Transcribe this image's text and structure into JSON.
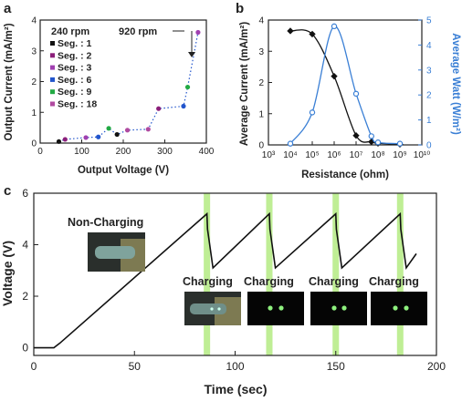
{
  "panel_labels": [
    "a",
    "b",
    "c"
  ],
  "chart_data": [
    {
      "type": "scatter",
      "panel": "a",
      "xlabel": "Output Voltage (V)",
      "ylabel": "Output Current (mA/m²)",
      "xlim": [
        0,
        400
      ],
      "ylim": [
        0,
        4
      ],
      "xticks": [
        "0",
        "100",
        "200",
        "300",
        "400"
      ],
      "yticks": [
        "0",
        "1",
        "2",
        "3",
        "4"
      ],
      "annotations": [
        "240 rpm",
        "920 rpm"
      ],
      "series": [
        {
          "name": "Seg. : 1",
          "color": "#111111",
          "points": [
            [
              185,
              0.28
            ],
            [
              45,
              0.05
            ]
          ]
        },
        {
          "name": "Seg. : 2",
          "color": "#8b1f7a",
          "points": [
            [
              60,
              0.12
            ],
            [
              285,
              1.12
            ]
          ]
        },
        {
          "name": "Seg. : 3",
          "color": "#a040b0",
          "points": [
            [
              110,
              0.18
            ],
            [
              380,
              3.6
            ]
          ]
        },
        {
          "name": "Seg. : 6",
          "color": "#2255cc",
          "points": [
            [
              140,
              0.2
            ],
            [
              345,
              1.2
            ]
          ]
        },
        {
          "name": "Seg. : 9",
          "color": "#22aa44",
          "points": [
            [
              165,
              0.48
            ],
            [
              355,
              1.82
            ]
          ]
        },
        {
          "name": "Seg. : 18",
          "color": "#b04aa0",
          "points": [
            [
              210,
              0.42
            ],
            [
              260,
              0.45
            ]
          ]
        }
      ]
    },
    {
      "type": "line",
      "panel": "b",
      "xlabel": "Resistance (ohm)",
      "ylabel": "Average Current (mA/m²)",
      "y2label": "Average Watt (W/m²)",
      "x_scale": "log",
      "xlim": [
        1000,
        10000000000
      ],
      "ylim": [
        0,
        4
      ],
      "y2lim": [
        0,
        5
      ],
      "xticks": [
        "10³",
        "10⁴",
        "10⁵",
        "10⁶",
        "10⁷",
        "10⁸",
        "10⁹",
        "10¹⁰"
      ],
      "yticks": [
        "0",
        "1",
        "2",
        "3",
        "4"
      ],
      "y2ticks": [
        "0",
        "1",
        "2",
        "3",
        "4",
        "5"
      ],
      "series": [
        {
          "name": "Average Current",
          "axis": "left",
          "color": "#111111",
          "x": [
            10000,
            100000,
            1000000,
            10000000,
            50000000,
            100000000,
            1000000000
          ],
          "y": [
            3.65,
            3.55,
            2.2,
            0.3,
            0.1,
            0.05,
            0.02
          ]
        },
        {
          "name": "Average Watt",
          "axis": "right",
          "color": "#3a7fd5",
          "x": [
            10000,
            100000,
            1000000,
            10000000,
            50000000,
            100000000,
            1000000000
          ],
          "y": [
            0.05,
            1.3,
            4.75,
            2.05,
            0.35,
            0.1,
            0.05
          ]
        }
      ]
    },
    {
      "type": "line",
      "panel": "c",
      "xlabel": "Time (sec)",
      "ylabel": "Voltage (V)",
      "xlim": [
        0,
        200
      ],
      "ylim": [
        -0.3,
        6
      ],
      "xticks": [
        "0",
        "50",
        "100",
        "150",
        "200"
      ],
      "yticks": [
        "0",
        "2",
        "4",
        "6"
      ],
      "highlight_times": [
        86,
        117,
        150,
        182
      ],
      "series": [
        {
          "name": "Voltage",
          "color": "#111111",
          "x": [
            0,
            10,
            13,
            86,
            86.3,
            89,
            117,
            117.3,
            120,
            150,
            150.3,
            153,
            182,
            182.3,
            185,
            190
          ],
          "y": [
            0,
            0,
            0.18,
            5.2,
            4.6,
            3.1,
            5.2,
            4.6,
            3.1,
            5.2,
            4.6,
            3.1,
            5.2,
            4.6,
            3.1,
            3.65
          ]
        }
      ],
      "labels": {
        "non_charging": "Non-Charging",
        "charging": "Charging"
      }
    }
  ]
}
